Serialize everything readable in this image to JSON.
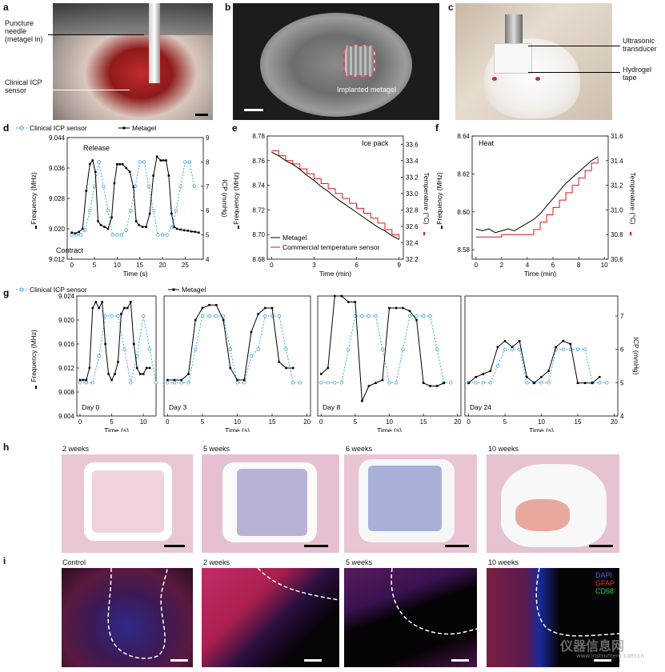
{
  "panels": {
    "a": {
      "label": "a",
      "ann_needle": "Puncture needle (metagel in)",
      "ann_needle_lines": [
        "Puncture",
        "needle",
        "(metagel in)"
      ],
      "ann_sensor_lines": [
        "Clinical ICP",
        "sensor"
      ]
    },
    "b": {
      "label": "b",
      "ann": "Implanted metagel"
    },
    "c": {
      "label": "c",
      "ann_transducer_lines": [
        "Ultrasonic",
        "transducer"
      ],
      "ann_tape_lines": [
        "Hydrogel",
        "tape"
      ]
    },
    "d": {
      "label": "d",
      "release": "Release",
      "contract": "Contract"
    },
    "e": {
      "label": "e",
      "ann": "Ice pack"
    },
    "f": {
      "label": "f",
      "ann": "Heat"
    },
    "g": {
      "label": "g"
    },
    "h": {
      "label": "h",
      "times": [
        "2 weeks",
        "5 weeks",
        "6 weeks",
        "10 weeks"
      ]
    },
    "i": {
      "label": "i",
      "times": [
        "Control",
        "2 weeks",
        "5 weeks",
        "10 weeks"
      ],
      "stains": [
        {
          "name": "DAPI",
          "color": "#3a6bff"
        },
        {
          "name": "GFAP",
          "color": "#ff2a2a"
        },
        {
          "name": "CD68",
          "color": "#22dd33"
        }
      ]
    }
  },
  "colors": {
    "metagel": "#000000",
    "icp": "#3aa3e0",
    "commercial": "#e0141b",
    "he_bg": "#e7c3d2",
    "if_bg": "#0b0610"
  },
  "watermark": {
    "text": "仪器信息网",
    "sub": "www.instrument.com.cn"
  },
  "chart_data": [
    {
      "id": "d",
      "type": "line",
      "legend": [
        "Clinical ICP sensor",
        "Metagel"
      ],
      "xlabel": "Time (s)",
      "ylabel": "Frequency (MHz)",
      "y2label": "ICP (mmHg)",
      "xlim": [
        -1,
        29
      ],
      "xticks": [
        "0",
        "5",
        "10",
        "15",
        "20",
        "25"
      ],
      "ylim": [
        9.012,
        9.044
      ],
      "yticks": [
        "9.012",
        "9.020",
        "9.028",
        "9.036",
        "9.044"
      ],
      "y2lim": [
        4,
        9
      ],
      "y2ticks": [
        "4",
        "5",
        "6",
        "7",
        "8",
        "9"
      ],
      "series": [
        {
          "name": "Clinical ICP sensor",
          "x": [
            0,
            1,
            2,
            3,
            4,
            5,
            6,
            7,
            8,
            9,
            10,
            11,
            12,
            13,
            14,
            15,
            16,
            17,
            18,
            19,
            20,
            21,
            22,
            23,
            24,
            25,
            26,
            27
          ],
          "y2": [
            5,
            5,
            5,
            5.2,
            6,
            7,
            8,
            7,
            6,
            5,
            5,
            5,
            5.2,
            6,
            7,
            8,
            8,
            7,
            6,
            5,
            5,
            5,
            5.3,
            6,
            7,
            8,
            8,
            7
          ]
        },
        {
          "name": "Metagel",
          "x": [
            0,
            0.8,
            1.6,
            2.4,
            3.2,
            4,
            4.6,
            5.2,
            5.8,
            6.4,
            7.2,
            8,
            8.8,
            9.4,
            10,
            10.6,
            11.2,
            12,
            12.8,
            13.6,
            14.2,
            14.8,
            15.6,
            16.4,
            17.2,
            18,
            18.8,
            19.6,
            20.2,
            20.8,
            21.4,
            22,
            22.6,
            23.2,
            24,
            24.8,
            25.6,
            26.4,
            27.2,
            28
          ],
          "y": [
            9.019,
            9.0188,
            9.0192,
            9.02,
            9.03,
            9.037,
            9.038,
            9.035,
            9.022,
            9.021,
            9.0205,
            9.02,
            9.023,
            9.032,
            9.037,
            9.037,
            9.037,
            9.036,
            9.035,
            9.031,
            9.022,
            9.021,
            9.0205,
            9.0205,
            9.024,
            9.034,
            9.039,
            9.038,
            9.038,
            9.038,
            9.034,
            9.024,
            9.0205,
            9.02,
            9.0198,
            9.0196,
            9.0195,
            9.0193,
            9.0192,
            9.019
          ]
        }
      ]
    },
    {
      "id": "e",
      "type": "line",
      "legend": [
        "Metagel",
        "Commercial temperature sensor"
      ],
      "xlabel": "Time (min)",
      "ylabel": "Frequency (MHz)",
      "y2label": "Temperature (°C)",
      "xlim": [
        -0.3,
        9.3
      ],
      "xticks": [
        "0",
        "3",
        "6",
        "9"
      ],
      "ylim": [
        8.68,
        8.78
      ],
      "yticks": [
        "8.68",
        "8.70",
        "8.72",
        "8.74",
        "8.76",
        "8.78"
      ],
      "y2lim": [
        32.2,
        33.7
      ],
      "y2ticks": [
        "32.2",
        "32.4",
        "32.6",
        "32.8",
        "33.0",
        "33.2",
        "33.4",
        "33.6"
      ],
      "series": [
        {
          "name": "Metagel",
          "x": [
            0,
            0.5,
            1,
            1.5,
            2,
            2.5,
            3,
            3.5,
            4,
            4.5,
            5,
            5.5,
            6,
            6.5,
            7,
            7.5,
            8,
            8.5,
            9
          ],
          "y": [
            8.767,
            8.764,
            8.76,
            8.757,
            8.753,
            8.748,
            8.744,
            8.739,
            8.735,
            8.73,
            8.726,
            8.722,
            8.718,
            8.714,
            8.71,
            8.706,
            8.703,
            8.699,
            8.696
          ]
        },
        {
          "name": "Commercial temperature sensor",
          "x": [
            0,
            0.5,
            1,
            1.5,
            2,
            2.5,
            3,
            3.5,
            4,
            4.5,
            5,
            5.5,
            6,
            6.5,
            7,
            7.5,
            8,
            8.5,
            9
          ],
          "y2": [
            33.52,
            33.46,
            33.4,
            33.36,
            33.3,
            33.24,
            33.18,
            33.12,
            33.06,
            33.0,
            32.94,
            32.88,
            32.82,
            32.76,
            32.7,
            32.64,
            32.56,
            32.5,
            32.44
          ]
        }
      ]
    },
    {
      "id": "f",
      "type": "line",
      "legend": [],
      "xlabel": "Time (min)",
      "ylabel": "Frequency (MHz)",
      "y2label": "Temperature (°C)",
      "xlim": [
        -0.3,
        10.3
      ],
      "xticks": [
        "0",
        "2",
        "4",
        "6",
        "8",
        "10"
      ],
      "ylim": [
        8.575,
        8.64
      ],
      "yticks": [
        "8.58",
        "8.60",
        "8.62",
        "8.64"
      ],
      "y2lim": [
        30.6,
        31.6
      ],
      "y2ticks": [
        "30.6",
        "30.8",
        "31.0",
        "31.2",
        "31.4",
        "31.6"
      ],
      "series": [
        {
          "name": "Metagel",
          "x": [
            0,
            0.5,
            1,
            1.5,
            2,
            2.5,
            3,
            3.5,
            4,
            4.5,
            5,
            5.5,
            6,
            6.5,
            7,
            7.5,
            8,
            8.5,
            9,
            9.5
          ],
          "y": [
            8.591,
            8.59,
            8.591,
            8.589,
            8.59,
            8.591,
            8.59,
            8.592,
            8.594,
            8.596,
            8.599,
            8.603,
            8.607,
            8.611,
            8.615,
            8.618,
            8.621,
            8.624,
            8.627,
            8.629
          ]
        },
        {
          "name": "Commercial temperature sensor",
          "x": [
            0,
            1,
            2,
            3,
            4,
            4.5,
            5,
            5.5,
            6,
            6.5,
            7,
            7.5,
            8,
            8.5,
            9,
            9.5
          ],
          "y2": [
            30.78,
            30.78,
            30.8,
            30.8,
            30.8,
            30.84,
            30.9,
            30.96,
            31.02,
            31.08,
            31.14,
            31.2,
            31.26,
            31.32,
            31.38,
            31.42
          ]
        }
      ]
    },
    {
      "id": "g",
      "type": "line",
      "legend": [
        "Clinical ICP sensor",
        "Metagel"
      ],
      "xlabel": "Time (s)",
      "ylabel": "Frequency (MHz)",
      "y2label": "ICP (mmHg)",
      "ylim": [
        9.004,
        9.024
      ],
      "yticks": [
        "9.004",
        "9.008",
        "9.012",
        "9.016",
        "9.020",
        "9.024"
      ],
      "y2lim": [
        4,
        7.6
      ],
      "y2ticks": [
        "4",
        "5",
        "6",
        "7"
      ],
      "subplots": [
        {
          "label": "Day 0",
          "xlim": [
            -0.5,
            12
          ],
          "xticks": [
            "0",
            "5",
            "10"
          ],
          "icp": {
            "x": [
              0,
              1,
              2,
              3,
              4,
              5,
              6,
              7,
              8,
              9,
              10,
              11,
              12
            ],
            "y": [
              5,
              5,
              5,
              5.8,
              7,
              7,
              7,
              6,
              5,
              5.8,
              7,
              6,
              5
            ]
          },
          "freq": {
            "x": [
              0,
              0.5,
              1,
              1.5,
              2,
              2.5,
              3,
              3.5,
              4,
              4.5,
              5,
              5.5,
              6,
              6.5,
              7,
              7.5,
              8,
              8.5,
              9,
              9.5,
              10,
              10.5,
              11
            ],
            "y": [
              9.01,
              9.01,
              9.01,
              9.012,
              9.022,
              9.023,
              9.022,
              9.023,
              9.016,
              9.011,
              9.01,
              9.011,
              9.013,
              9.021,
              9.022,
              9.022,
              9.023,
              9.016,
              9.012,
              9.011,
              9.011,
              9.012,
              9.012
            ]
          }
        },
        {
          "label": "Day 3",
          "xlim": [
            -0.5,
            20.5
          ],
          "xticks": [
            "0",
            "5",
            "10",
            "15",
            "20"
          ],
          "icp": {
            "x": [
              0,
              1,
              2,
              3,
              4,
              5,
              6,
              7,
              8,
              9,
              10,
              11,
              12,
              13,
              14,
              15,
              16,
              17,
              18,
              19
            ],
            "y": [
              5,
              5,
              5,
              5,
              6,
              7,
              7,
              7,
              7,
              6,
              5,
              5,
              5.8,
              6,
              7,
              7,
              7,
              6,
              5,
              5
            ]
          },
          "freq": {
            "x": [
              0,
              1,
              2,
              3,
              4,
              5,
              6,
              7,
              8,
              9,
              10,
              11,
              12,
              13,
              14,
              15,
              16,
              17,
              18
            ],
            "y": [
              9.01,
              9.01,
              9.01,
              9.011,
              9.02,
              9.022,
              9.0225,
              9.0225,
              9.02,
              9.012,
              9.01,
              9.01,
              9.018,
              9.021,
              9.022,
              9.022,
              9.013,
              9.012,
              9.012
            ]
          }
        },
        {
          "label": "Day 8",
          "xlim": [
            -0.5,
            20.5
          ],
          "xticks": [
            "0",
            "5",
            "10",
            "15",
            "20"
          ],
          "icp": {
            "x": [
              0,
              1,
              2,
              3,
              4,
              5,
              6,
              7,
              8,
              9,
              10,
              11,
              12,
              13,
              14,
              15,
              16,
              17,
              18,
              19
            ],
            "y": [
              5,
              5,
              5,
              5,
              6,
              7,
              7,
              7,
              7,
              6,
              5,
              5,
              6,
              7,
              7,
              7,
              7,
              6,
              5,
              5
            ]
          },
          "freq": {
            "x": [
              0,
              1,
              2,
              3,
              4,
              5,
              6,
              7,
              8,
              9,
              10,
              11,
              12,
              13,
              14,
              15,
              16,
              17,
              18
            ],
            "y": [
              9.011,
              9.012,
              9.024,
              9.024,
              9.023,
              9.023,
              9.0065,
              9.009,
              9.0095,
              9.01,
              9.022,
              9.022,
              9.022,
              9.0215,
              9.02,
              9.0095,
              9.009,
              9.009,
              9.0095
            ]
          }
        },
        {
          "label": "Day 24",
          "xlim": [
            -0.5,
            20.5
          ],
          "xticks": [
            "0",
            "5",
            "10",
            "15",
            "20"
          ],
          "icp": {
            "x": [
              0,
              1,
              2,
              3,
              4,
              5,
              6,
              7,
              8,
              9,
              10,
              11,
              12,
              13,
              14,
              15,
              16,
              17,
              18,
              19
            ],
            "y": [
              5,
              5,
              5,
              5,
              5.5,
              6,
              6,
              6,
              5,
              5,
              5,
              5,
              6,
              6,
              6,
              6,
              6,
              5,
              5,
              5
            ]
          },
          "freq": {
            "x": [
              0,
              1,
              2,
              3,
              4,
              5,
              6,
              7,
              8,
              9,
              10,
              11,
              12,
              13,
              14,
              15,
              16,
              17,
              18
            ],
            "y": [
              9.0095,
              9.0105,
              9.011,
              9.0115,
              9.0155,
              9.0165,
              9.0155,
              9.0165,
              9.0105,
              9.0095,
              9.0105,
              9.0115,
              9.0155,
              9.0165,
              9.016,
              9.0095,
              9.0095,
              9.0095,
              9.0105
            ]
          }
        }
      ]
    }
  ]
}
